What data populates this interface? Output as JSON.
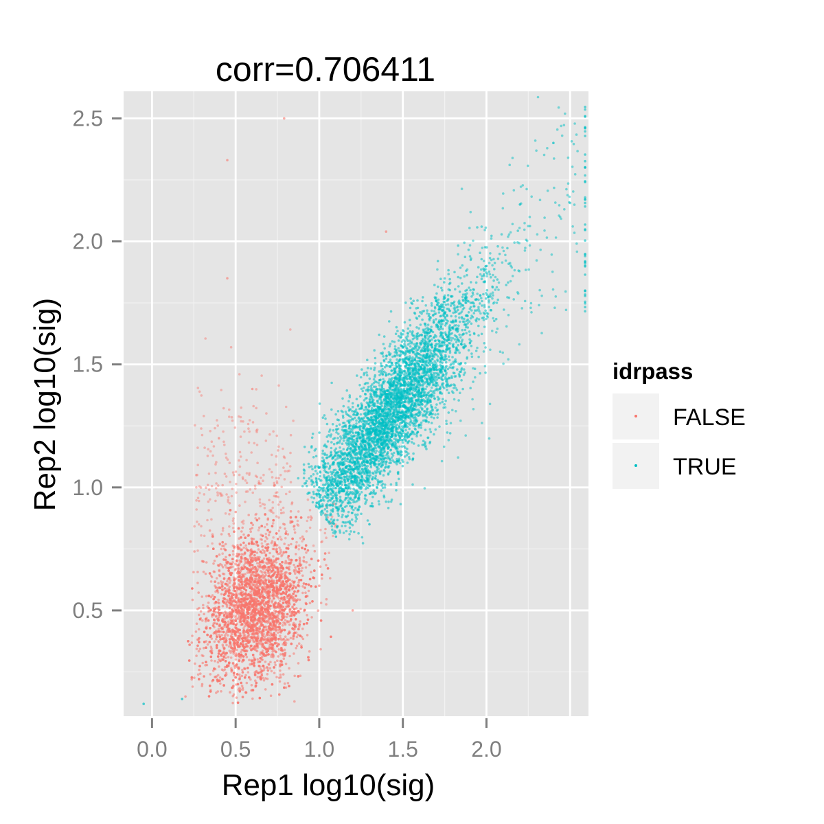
{
  "chart_data": {
    "type": "scatter",
    "title": "corr=0.706411",
    "xlabel": "Rep1 log10(sig)",
    "ylabel": "Rep2 log10(sig)",
    "xlim": [
      -0.17,
      2.61
    ],
    "ylim": [
      0.07,
      2.61
    ],
    "x_ticks": [
      0.0,
      0.5,
      1.0,
      1.5,
      2.0
    ],
    "x_tick_labels": [
      "0.0",
      "0.5",
      "1.0",
      "1.5",
      "2.0"
    ],
    "y_ticks": [
      0.5,
      1.0,
      1.5,
      2.0,
      2.5
    ],
    "y_tick_labels": [
      "0.5",
      "1.0",
      "1.5",
      "2.0",
      "2.5"
    ],
    "grid": true,
    "legend": {
      "title": "idrpass",
      "placement": "right"
    },
    "colors": {
      "panel_bg": "#e5e5e5",
      "grid_major": "#ffffff",
      "grid_minor": "#f2f2f2",
      "legend_key_bg": "#f2f2f2",
      "tick": "#7f7f7f"
    },
    "series": [
      {
        "name": "FALSE",
        "color": "#f8766d",
        "description_points": [
          [
            0.2,
            0.15
          ],
          [
            0.3,
            0.2
          ],
          [
            0.4,
            0.3
          ],
          [
            0.5,
            0.4
          ],
          [
            0.6,
            0.5
          ],
          [
            0.7,
            0.6
          ],
          [
            0.8,
            0.7
          ],
          [
            0.9,
            0.8
          ],
          [
            0.5,
            0.9
          ],
          [
            0.4,
            1.2
          ],
          [
            0.6,
            1.4
          ],
          [
            0.3,
            0.7
          ],
          [
            1.0,
            0.6
          ],
          [
            1.2,
            0.5
          ],
          [
            0.45,
            1.85
          ],
          [
            0.45,
            2.33
          ],
          [
            0.79,
            2.5
          ],
          [
            1.4,
            2.04
          ]
        ]
      },
      {
        "name": "TRUE",
        "color": "#00bfc4",
        "description_points": [
          [
            1.0,
            1.0
          ],
          [
            1.2,
            1.1
          ],
          [
            1.4,
            1.3
          ],
          [
            1.6,
            1.45
          ],
          [
            1.8,
            1.65
          ],
          [
            2.0,
            1.9
          ],
          [
            2.2,
            2.15
          ],
          [
            2.4,
            2.4
          ],
          [
            1.1,
            0.8
          ],
          [
            1.3,
            0.85
          ],
          [
            2.59,
            2.3
          ],
          [
            2.59,
            1.8
          ],
          [
            -0.05,
            0.12
          ],
          [
            0.18,
            0.14
          ]
        ]
      }
    ]
  }
}
